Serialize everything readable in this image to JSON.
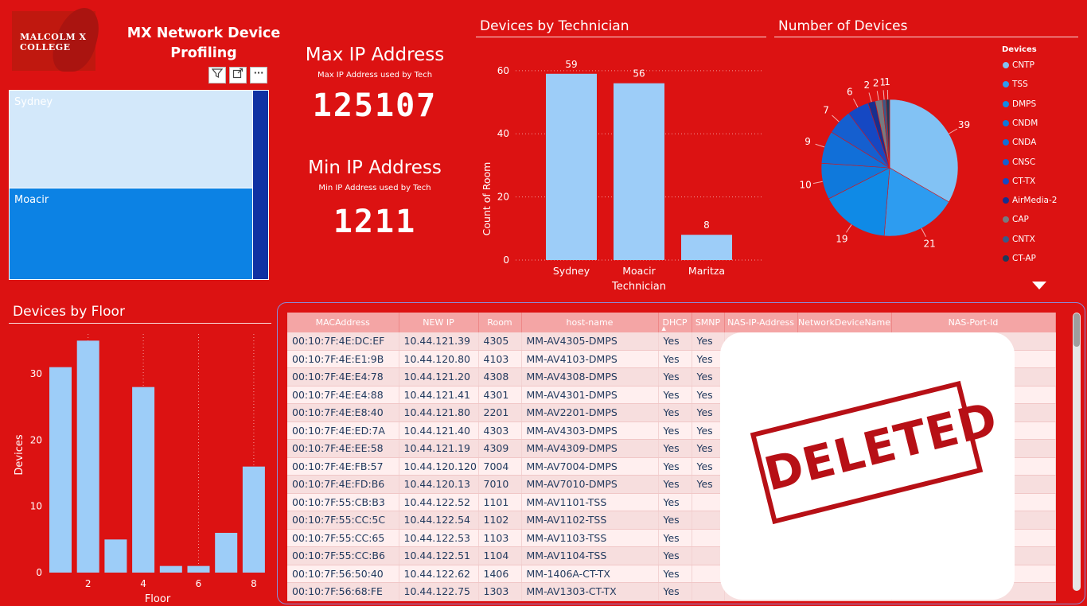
{
  "logo": {
    "text": "MALCOLM X COLLEGE"
  },
  "app_title_line1": "MX Network Device",
  "app_title_line2": "Profiling",
  "visual_icons": [
    "filter-icon",
    "focus-mode-icon",
    "more-options-icon"
  ],
  "treemap": {
    "items": [
      {
        "label": "Sydney",
        "value": 59
      },
      {
        "label": "Moacir",
        "value": 56
      },
      {
        "label": "",
        "value": 8
      }
    ]
  },
  "kpi_max": {
    "title": "Max IP Address",
    "subtitle": "Max IP Address used by Tech",
    "value": "125107"
  },
  "kpi_min": {
    "title": "Min IP Address",
    "subtitle": "Min IP Address used by Tech",
    "value": "1211"
  },
  "tech_chart": {
    "title": "Devices by Technician",
    "chart_data": {
      "type": "bar",
      "categories": [
        "Sydney",
        "Moacir",
        "Maritza"
      ],
      "values": [
        59,
        56,
        8
      ],
      "xlabel": "Technician",
      "ylabel": "Count of Room",
      "yticks": [
        0,
        20,
        40,
        60
      ],
      "ylim": [
        0,
        66
      ],
      "grid": true
    }
  },
  "devices_chart": {
    "title": "Number of Devices",
    "legend_title": "Devices",
    "chart_data": {
      "type": "pie",
      "labels": [
        "CNTP",
        "TSS",
        "DMPS",
        "CNDM",
        "CNDA",
        "CNSC",
        "CT-TX",
        "AirMedia-2",
        "CAP",
        "CNTX",
        "CT-AP"
      ],
      "values": [
        39,
        21,
        19,
        10,
        9,
        7,
        6,
        2,
        2,
        1,
        1
      ],
      "colors": [
        "#82c2f4",
        "#2d9cf0",
        "#0f8ae6",
        "#0f79dc",
        "#116fd8",
        "#155fcf",
        "#1548c3",
        "#182f8e",
        "#777a80",
        "#3a5a86",
        "#1e3a5a"
      ],
      "legend_placement": "right"
    }
  },
  "floor_chart": {
    "title": "Devices by Floor",
    "chart_data": {
      "type": "bar",
      "x": [
        1,
        2,
        3,
        4,
        5,
        6,
        7,
        8
      ],
      "values": [
        31,
        35,
        5,
        28,
        1,
        1,
        6,
        16
      ],
      "xlabel": "Floor",
      "ylabel": "Devices",
      "xticks": [
        2,
        4,
        6,
        8
      ],
      "yticks": [
        0,
        10,
        20,
        30
      ],
      "ylim": [
        0,
        36
      ],
      "grid": true
    }
  },
  "table": {
    "headers": [
      "MACAddress",
      "NEW IP",
      "Room",
      "host-name",
      "DHCP",
      "SMNP",
      "NAS-IP-Address",
      "NetworkDeviceName",
      "NAS-Port-Id"
    ],
    "rows": [
      [
        "00:10:7F:4E:DC:EF",
        "10.44.121.39",
        "4305",
        "MM-AV4305-DMPS",
        "Yes",
        "Yes"
      ],
      [
        "00:10:7F:4E:E1:9B",
        "10.44.120.80",
        "4103",
        "MM-AV4103-DMPS",
        "Yes",
        "Yes"
      ],
      [
        "00:10:7F:4E:E4:78",
        "10.44.121.20",
        "4308",
        "MM-AV4308-DMPS",
        "Yes",
        "Yes"
      ],
      [
        "00:10:7F:4E:E4:88",
        "10.44.121.41",
        "4301",
        "MM-AV4301-DMPS",
        "Yes",
        "Yes"
      ],
      [
        "00:10:7F:4E:E8:40",
        "10.44.121.80",
        "2201",
        "MM-AV2201-DMPS",
        "Yes",
        "Yes"
      ],
      [
        "00:10:7F:4E:ED:7A",
        "10.44.121.40",
        "4303",
        "MM-AV4303-DMPS",
        "Yes",
        "Yes"
      ],
      [
        "00:10:7F:4E:EE:58",
        "10.44.121.19",
        "4309",
        "MM-AV4309-DMPS",
        "Yes",
        "Yes"
      ],
      [
        "00:10:7F:4E:FB:57",
        "10.44.120.120",
        "7004",
        "MM-AV7004-DMPS",
        "Yes",
        "Yes"
      ],
      [
        "00:10:7F:4E:FD:B6",
        "10.44.120.13",
        "7010",
        "MM-AV7010-DMPS",
        "Yes",
        "Yes"
      ],
      [
        "00:10:7F:55:CB:B3",
        "10.44.122.52",
        "1101",
        "MM-AV1101-TSS",
        "Yes",
        ""
      ],
      [
        "00:10:7F:55:CC:5C",
        "10.44.122.54",
        "1102",
        "MM-AV1102-TSS",
        "Yes",
        ""
      ],
      [
        "00:10:7F:55:CC:65",
        "10.44.122.53",
        "1103",
        "MM-AV1103-TSS",
        "Yes",
        ""
      ],
      [
        "00:10:7F:55:CC:B6",
        "10.44.122.51",
        "1104",
        "MM-AV1104-TSS",
        "Yes",
        ""
      ],
      [
        "00:10:7F:56:50:40",
        "10.44.122.62",
        "1406",
        "MM-1406A-CT-TX",
        "Yes",
        ""
      ],
      [
        "00:10:7F:56:68:FE",
        "10.44.122.75",
        "1303",
        "MM-AV1303-CT-TX",
        "Yes",
        ""
      ]
    ]
  },
  "stamp_text": "DELETED",
  "colors": {
    "background": "#dc1212",
    "bar": "#9dcdf8",
    "header": "#f4a5a5"
  }
}
